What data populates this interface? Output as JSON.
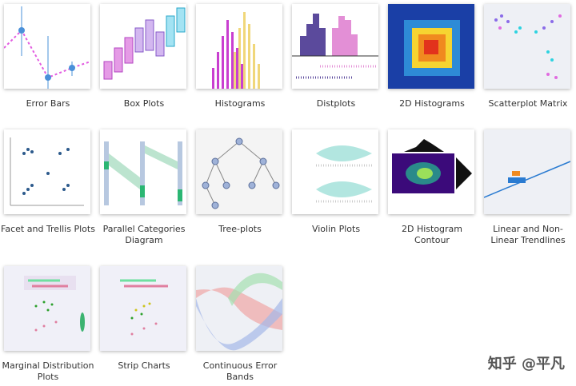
{
  "gallery": {
    "items": [
      {
        "label": "Error Bars"
      },
      {
        "label": "Box Plots"
      },
      {
        "label": "Histograms"
      },
      {
        "label": "Distplots"
      },
      {
        "label": "2D Histograms"
      },
      {
        "label": "Scatterplot Matrix"
      },
      {
        "label": "Facet and Trellis Plots"
      },
      {
        "label": "Parallel Categories Diagram"
      },
      {
        "label": "Tree-plots"
      },
      {
        "label": "Violin Plots"
      },
      {
        "label": "2D Histogram Contour"
      },
      {
        "label": "Linear and Non-Linear Trendlines"
      },
      {
        "label": "Marginal Distribution Plots"
      },
      {
        "label": "Strip Charts"
      },
      {
        "label": "Continuous Error Bands"
      }
    ]
  },
  "watermark": "知乎 @平凡"
}
